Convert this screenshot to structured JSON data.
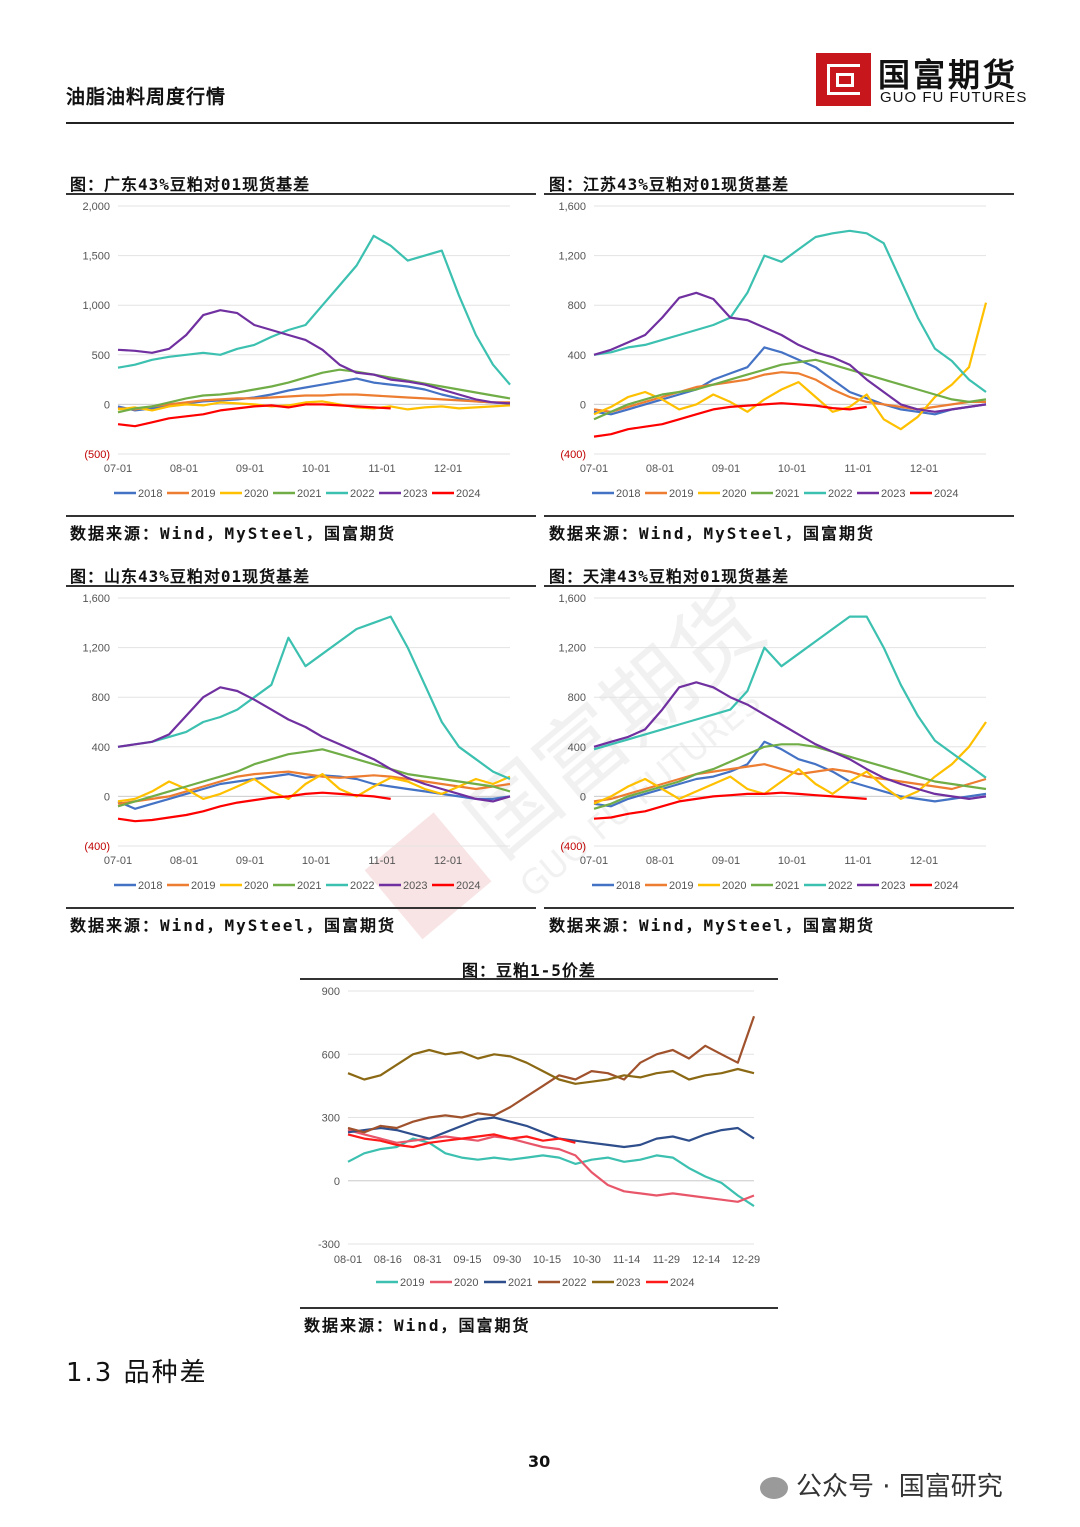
{
  "header": {
    "report_title": "油脂油料周度行情",
    "logo_cn": "国富期货",
    "logo_en": "GUO FU FUTURES"
  },
  "colors": {
    "2018": "#4472c4",
    "2019": "#ed7d31",
    "2020": "#ffc000",
    "2021": "#70ad47",
    "2022": "#3cc0b0",
    "2023": "#7030a0",
    "2024": "#ff0000",
    "spread_2019": "#3cc0b0",
    "spread_2020": "#e8566a",
    "spread_2021": "#2f4e8c",
    "spread_2022": "#a0522d",
    "spread_2023": "#8b6914",
    "spread_2024": "#ff1a1a"
  },
  "charts": {
    "guangdong": {
      "title": "图：广东43%豆粕对01现货基差",
      "source": "数据来源：Wind，MySteel，国富期货"
    },
    "jiangsu": {
      "title": "图：江苏43%豆粕对01现货基差",
      "source": "数据来源：Wind，MySteel，国富期货"
    },
    "shandong": {
      "title": "图：山东43%豆粕对01现货基差",
      "source": "数据来源：Wind，MySteel，国富期货"
    },
    "tianjin": {
      "title": "图：天津43%豆粕对01现货基差",
      "source": "数据来源：Wind，MySteel，国富期货"
    },
    "spread": {
      "title": "图：豆粕1-5价差",
      "source": "数据来源：Wind，国富期货"
    }
  },
  "section_heading": "1.3 品种差",
  "page_number": "30",
  "wechat_label": "公众号 · 国富研究",
  "chart_data": [
    {
      "id": "guangdong",
      "type": "line",
      "title": "图：广东43%豆粕对01现货基差",
      "x_ticks": [
        "07-01",
        "08-01",
        "09-01",
        "10-01",
        "11-01",
        "12-01"
      ],
      "y_ticks": [
        "2,000",
        "1,500",
        "1,000",
        "500",
        "0",
        "(500)"
      ],
      "ylim": [
        -500,
        2000
      ],
      "legend": [
        "2018",
        "2019",
        "2020",
        "2021",
        "2022",
        "2023",
        "2024"
      ],
      "series": [
        {
          "name": "2018",
          "values": [
            -20,
            -60,
            -40,
            -10,
            10,
            30,
            40,
            50,
            70,
            100,
            140,
            170,
            200,
            230,
            260,
            220,
            200,
            180,
            150,
            100,
            60,
            30,
            20,
            10
          ]
        },
        {
          "name": "2019",
          "values": [
            -40,
            -50,
            -20,
            0,
            20,
            40,
            50,
            60,
            60,
            70,
            80,
            90,
            90,
            100,
            100,
            90,
            80,
            70,
            60,
            50,
            40,
            30,
            20,
            20
          ]
        },
        {
          "name": "2020",
          "values": [
            -50,
            -30,
            -60,
            -20,
            0,
            -10,
            20,
            10,
            0,
            -20,
            -10,
            20,
            30,
            0,
            -30,
            -40,
            -20,
            -50,
            -30,
            -20,
            -40,
            -30,
            -20,
            -10
          ]
        },
        {
          "name": "2021",
          "values": [
            -80,
            -40,
            -20,
            20,
            60,
            90,
            100,
            120,
            150,
            180,
            220,
            270,
            320,
            350,
            330,
            300,
            270,
            240,
            210,
            180,
            150,
            120,
            90,
            60
          ]
        },
        {
          "name": "2022",
          "values": [
            370,
            400,
            450,
            480,
            500,
            520,
            500,
            560,
            600,
            680,
            750,
            800,
            1000,
            1200,
            1400,
            1700,
            1600,
            1450,
            1500,
            1550,
            1100,
            700,
            400,
            200
          ]
        },
        {
          "name": "2023",
          "values": [
            550,
            540,
            520,
            560,
            700,
            900,
            950,
            920,
            800,
            750,
            700,
            650,
            550,
            400,
            320,
            300,
            250,
            230,
            200,
            150,
            100,
            50,
            20,
            10
          ]
        },
        {
          "name": "2024",
          "values": [
            -200,
            -220,
            -180,
            -140,
            -120,
            -100,
            -60,
            -40,
            -20,
            -10,
            -30,
            0,
            0,
            -10,
            -20,
            -30,
            -40
          ]
        }
      ]
    },
    {
      "id": "jiangsu",
      "type": "line",
      "title": "图：江苏43%豆粕对01现货基差",
      "x_ticks": [
        "07-01",
        "08-01",
        "09-01",
        "10-01",
        "11-01",
        "12-01"
      ],
      "y_ticks": [
        "1,600",
        "1,200",
        "800",
        "400",
        "0",
        "(400)"
      ],
      "ylim": [
        -400,
        1600
      ],
      "legend": [
        "2018",
        "2019",
        "2020",
        "2021",
        "2022",
        "2023",
        "2024"
      ],
      "series": [
        {
          "name": "2018",
          "values": [
            -60,
            -80,
            -40,
            0,
            40,
            80,
            120,
            200,
            250,
            300,
            460,
            420,
            360,
            300,
            200,
            100,
            50,
            0,
            -40,
            -60,
            -80,
            -40,
            -20,
            0
          ]
        },
        {
          "name": "2019",
          "values": [
            -40,
            -60,
            -20,
            20,
            60,
            100,
            140,
            160,
            180,
            200,
            240,
            260,
            250,
            200,
            120,
            60,
            20,
            0,
            -20,
            -40,
            -20,
            0,
            20,
            20
          ]
        },
        {
          "name": "2020",
          "values": [
            -80,
            -20,
            60,
            100,
            40,
            -40,
            0,
            80,
            20,
            -60,
            40,
            120,
            180,
            60,
            -60,
            -20,
            80,
            -120,
            -200,
            -100,
            60,
            160,
            300,
            820
          ]
        },
        {
          "name": "2021",
          "values": [
            -120,
            -60,
            0,
            40,
            80,
            100,
            120,
            160,
            200,
            240,
            280,
            320,
            340,
            360,
            320,
            280,
            240,
            200,
            160,
            120,
            80,
            40,
            20,
            40
          ]
        },
        {
          "name": "2022",
          "values": [
            400,
            420,
            460,
            480,
            520,
            560,
            600,
            640,
            700,
            900,
            1200,
            1150,
            1250,
            1350,
            1380,
            1400,
            1380,
            1300,
            1000,
            700,
            450,
            350,
            200,
            100
          ]
        },
        {
          "name": "2023",
          "values": [
            400,
            440,
            500,
            560,
            700,
            860,
            900,
            850,
            700,
            680,
            620,
            560,
            480,
            420,
            380,
            320,
            200,
            100,
            0,
            -40,
            -60,
            -40,
            -20,
            0
          ]
        },
        {
          "name": "2024",
          "values": [
            -260,
            -240,
            -200,
            -180,
            -160,
            -120,
            -80,
            -40,
            -20,
            -10,
            0,
            10,
            0,
            -10,
            -30,
            -40,
            -20
          ]
        }
      ]
    },
    {
      "id": "shandong",
      "type": "line",
      "title": "图：山东43%豆粕对01现货基差",
      "x_ticks": [
        "07-01",
        "08-01",
        "09-01",
        "10-01",
        "11-01",
        "12-01"
      ],
      "y_ticks": [
        "1,600",
        "1,200",
        "800",
        "400",
        "0",
        "(400)"
      ],
      "ylim": [
        -400,
        1600
      ],
      "legend": [
        "2018",
        "2019",
        "2020",
        "2021",
        "2022",
        "2023",
        "2024"
      ],
      "series": [
        {
          "name": "2018",
          "values": [
            -40,
            -100,
            -60,
            -20,
            20,
            60,
            100,
            120,
            140,
            160,
            180,
            150,
            170,
            160,
            140,
            100,
            80,
            60,
            40,
            20,
            0,
            -20,
            -20,
            0
          ]
        },
        {
          "name": "2019",
          "values": [
            -60,
            -40,
            -20,
            0,
            40,
            80,
            120,
            160,
            180,
            190,
            200,
            180,
            160,
            150,
            160,
            170,
            160,
            140,
            120,
            100,
            80,
            60,
            80,
            100
          ]
        },
        {
          "name": "2020",
          "values": [
            -40,
            -20,
            40,
            120,
            60,
            -20,
            20,
            80,
            140,
            40,
            -20,
            100,
            180,
            60,
            0,
            80,
            150,
            120,
            60,
            20,
            80,
            140,
            100,
            160
          ]
        },
        {
          "name": "2021",
          "values": [
            -80,
            -40,
            0,
            40,
            80,
            120,
            160,
            200,
            260,
            300,
            340,
            360,
            380,
            340,
            300,
            260,
            220,
            180,
            160,
            140,
            120,
            100,
            80,
            40
          ]
        },
        {
          "name": "2022",
          "values": [
            400,
            420,
            440,
            480,
            520,
            600,
            640,
            700,
            800,
            900,
            1280,
            1050,
            1150,
            1250,
            1350,
            1400,
            1450,
            1200,
            900,
            600,
            400,
            300,
            200,
            140
          ]
        },
        {
          "name": "2023",
          "values": [
            400,
            420,
            440,
            500,
            650,
            800,
            880,
            850,
            780,
            700,
            620,
            560,
            480,
            420,
            360,
            300,
            220,
            150,
            100,
            60,
            20,
            -20,
            -40,
            0
          ]
        },
        {
          "name": "2024",
          "values": [
            -180,
            -200,
            -190,
            -170,
            -150,
            -120,
            -80,
            -50,
            -30,
            -10,
            0,
            20,
            30,
            20,
            10,
            0,
            -20
          ]
        }
      ]
    },
    {
      "id": "tianjin",
      "type": "line",
      "title": "图：天津43%豆粕对01现货基差",
      "x_ticks": [
        "07-01",
        "08-01",
        "09-01",
        "10-01",
        "11-01",
        "12-01"
      ],
      "y_ticks": [
        "1,600",
        "1,200",
        "800",
        "400",
        "0",
        "(400)"
      ],
      "ylim": [
        -400,
        1600
      ],
      "legend": [
        "2018",
        "2019",
        "2020",
        "2021",
        "2022",
        "2023",
        "2024"
      ],
      "series": [
        {
          "name": "2018",
          "values": [
            -60,
            -80,
            -20,
            20,
            60,
            100,
            140,
            160,
            200,
            260,
            440,
            380,
            300,
            260,
            200,
            120,
            80,
            40,
            0,
            -20,
            -40,
            -20,
            0,
            20
          ]
        },
        {
          "name": "2019",
          "values": [
            -40,
            -20,
            20,
            60,
            100,
            140,
            180,
            200,
            220,
            240,
            260,
            220,
            180,
            200,
            220,
            200,
            160,
            140,
            120,
            100,
            80,
            60,
            100,
            140
          ]
        },
        {
          "name": "2020",
          "values": [
            -60,
            0,
            80,
            140,
            60,
            -20,
            40,
            100,
            160,
            60,
            20,
            120,
            220,
            100,
            20,
            120,
            200,
            80,
            -20,
            40,
            160,
            260,
            400,
            600
          ]
        },
        {
          "name": "2021",
          "values": [
            -100,
            -60,
            0,
            40,
            80,
            120,
            180,
            220,
            280,
            340,
            400,
            420,
            420,
            400,
            360,
            320,
            280,
            240,
            200,
            160,
            120,
            100,
            80,
            60
          ]
        },
        {
          "name": "2022",
          "values": [
            380,
            420,
            460,
            500,
            540,
            580,
            620,
            660,
            700,
            850,
            1200,
            1050,
            1150,
            1250,
            1350,
            1450,
            1450,
            1200,
            900,
            650,
            450,
            350,
            250,
            150
          ]
        },
        {
          "name": "2023",
          "values": [
            400,
            440,
            480,
            540,
            700,
            880,
            920,
            880,
            800,
            740,
            660,
            580,
            500,
            420,
            360,
            300,
            220,
            150,
            100,
            60,
            20,
            0,
            -20,
            0
          ]
        },
        {
          "name": "2024",
          "values": [
            -180,
            -170,
            -140,
            -120,
            -80,
            -40,
            -20,
            0,
            10,
            20,
            20,
            30,
            20,
            10,
            0,
            -10,
            -20
          ]
        }
      ]
    },
    {
      "id": "spread",
      "type": "line",
      "title": "图：豆粕1-5价差",
      "x_ticks": [
        "08-01",
        "08-16",
        "08-31",
        "09-15",
        "09-30",
        "10-15",
        "10-30",
        "11-14",
        "11-29",
        "12-14",
        "12-29"
      ],
      "y_ticks": [
        "900",
        "600",
        "300",
        "0",
        "-300"
      ],
      "ylim": [
        -300,
        900
      ],
      "legend": [
        "2019",
        "2020",
        "2021",
        "2022",
        "2023",
        "2024"
      ],
      "series": [
        {
          "name": "2019",
          "values": [
            90,
            130,
            150,
            160,
            200,
            180,
            130,
            110,
            100,
            110,
            100,
            110,
            120,
            110,
            80,
            100,
            110,
            90,
            100,
            120,
            110,
            60,
            20,
            -10,
            -70,
            -120
          ]
        },
        {
          "name": "2020",
          "values": [
            240,
            220,
            200,
            180,
            190,
            200,
            210,
            200,
            190,
            210,
            200,
            180,
            160,
            150,
            120,
            40,
            -20,
            -50,
            -60,
            -70,
            -60,
            -70,
            -80,
            -90,
            -100,
            -70
          ]
        },
        {
          "name": "2021",
          "values": [
            230,
            240,
            250,
            240,
            220,
            200,
            230,
            260,
            290,
            300,
            280,
            260,
            230,
            200,
            190,
            180,
            170,
            160,
            170,
            200,
            210,
            190,
            220,
            240,
            250,
            200
          ]
        },
        {
          "name": "2022",
          "values": [
            250,
            230,
            260,
            250,
            280,
            300,
            310,
            300,
            320,
            310,
            350,
            400,
            450,
            500,
            480,
            520,
            510,
            480,
            560,
            600,
            620,
            580,
            640,
            600,
            560,
            780
          ]
        },
        {
          "name": "2023",
          "values": [
            510,
            480,
            500,
            550,
            600,
            620,
            600,
            610,
            580,
            600,
            590,
            560,
            520,
            480,
            460,
            470,
            480,
            500,
            490,
            510,
            520,
            480,
            500,
            510,
            530,
            510
          ]
        },
        {
          "name": "2024",
          "values": [
            220,
            200,
            190,
            170,
            160,
            180,
            190,
            200,
            210,
            220,
            200,
            210,
            190,
            200,
            180
          ]
        }
      ]
    }
  ]
}
